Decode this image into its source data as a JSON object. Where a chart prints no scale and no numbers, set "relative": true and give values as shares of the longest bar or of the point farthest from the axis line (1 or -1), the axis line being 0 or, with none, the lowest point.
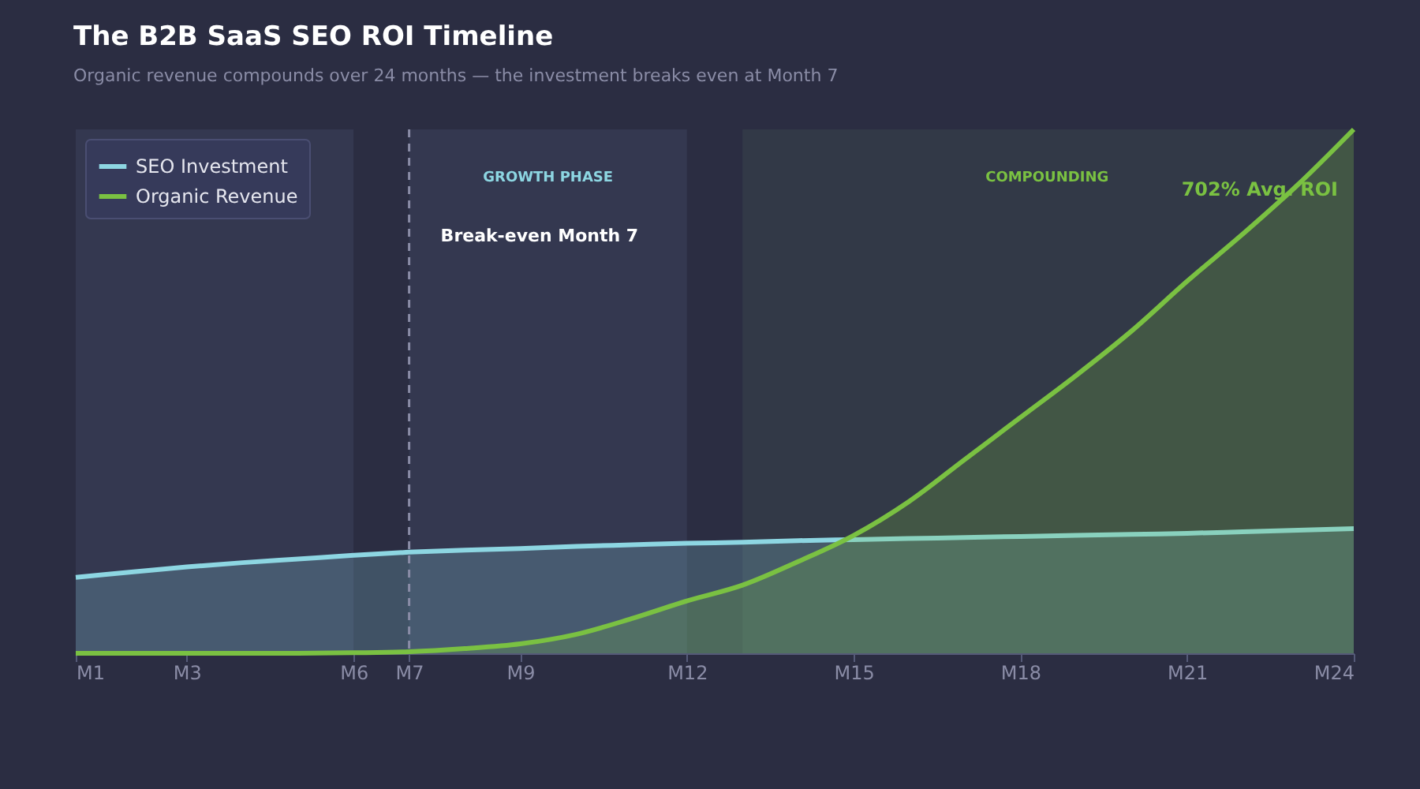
{
  "chart_data": {
    "type": "area",
    "title": "The B2B SaaS SEO ROI Timeline",
    "subtitle": "Organic revenue compounds over 24 months — the investment breaks even at Month 7",
    "categories": [
      "M1",
      null,
      "M3",
      null,
      null,
      "M6",
      "M7",
      null,
      "M9",
      null,
      null,
      "M12",
      null,
      null,
      "M15",
      null,
      null,
      "M18",
      null,
      null,
      "M21",
      null,
      null,
      "M24"
    ],
    "relative": true,
    "series": [
      {
        "name": "SEO Investment",
        "color": "#8dd6e2",
        "values": [
          0.145,
          0.155,
          0.165,
          0.173,
          0.18,
          0.187,
          0.193,
          0.197,
          0.2,
          0.204,
          0.207,
          0.21,
          0.212,
          0.215,
          0.217,
          0.219,
          0.221,
          0.223,
          0.225,
          0.227,
          0.229,
          0.232,
          0.235,
          0.238
        ]
      },
      {
        "name": "Organic Revenue",
        "color": "#7ac142",
        "values": [
          0,
          0,
          0,
          0,
          0,
          0.001,
          0.003,
          0.009,
          0.018,
          0.036,
          0.066,
          0.1,
          0.13,
          0.175,
          0.225,
          0.29,
          0.37,
          0.45,
          0.53,
          0.615,
          0.71,
          0.8,
          0.895,
          1
        ]
      }
    ],
    "tick_labels": "x",
    "legend": "top left",
    "ref_lines": [
      {
        "axis": "x",
        "value": "M7",
        "label": "Break-even  Month 7",
        "line_style": "dashed",
        "color": "#8a8ca6"
      }
    ],
    "bands": [
      {
        "axis": "x",
        "from": "M1",
        "to": "M6",
        "color": "#353a52"
      },
      {
        "axis": "x",
        "from": "M7",
        "to": "M12",
        "label": "GROWTH PHASE",
        "color": "#353a52"
      }
    ],
    "annotations": [
      "COMPOUNDING",
      "702% Avg. ROI"
    ]
  }
}
